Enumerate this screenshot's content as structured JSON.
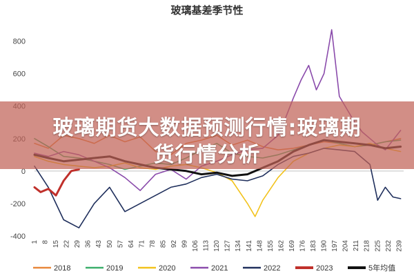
{
  "chart_data": {
    "type": "line",
    "title": "玻璃基差季节性",
    "xlabel": "",
    "ylabel": "",
    "ylim": [
      -400,
      900
    ],
    "yticks": [
      800,
      600,
      400,
      200,
      0,
      -200,
      -400
    ],
    "xrange": [
      1,
      242
    ],
    "xticks": [
      1,
      8,
      15,
      22,
      29,
      36,
      43,
      50,
      57,
      64,
      71,
      78,
      85,
      92,
      99,
      106,
      113,
      120,
      127,
      134,
      141,
      148,
      155,
      162,
      169,
      176,
      183,
      190,
      197,
      204,
      211,
      218,
      225,
      232,
      239
    ],
    "grid": false,
    "legend_position": "bottom",
    "series": [
      {
        "name": "2018",
        "color": "#e8873a",
        "x": [
          1,
          10,
          20,
          30,
          40,
          50,
          60,
          70,
          80,
          90,
          100,
          110,
          120,
          130,
          140,
          150,
          160,
          170,
          180,
          190,
          200,
          210,
          220,
          230,
          240
        ],
        "y": [
          170,
          140,
          220,
          200,
          170,
          220,
          180,
          210,
          120,
          100,
          170,
          190,
          220,
          160,
          190,
          150,
          130,
          140,
          160,
          180,
          170,
          150,
          160,
          180,
          200
        ]
      },
      {
        "name": "2019",
        "color": "#3aae6a",
        "x": [
          1,
          10,
          20,
          30,
          40,
          50,
          60,
          70,
          80,
          90,
          100,
          110,
          120,
          130,
          140,
          150,
          160,
          170,
          180,
          190,
          200,
          210,
          220,
          230,
          240
        ],
        "y": [
          200,
          150,
          90,
          80,
          60,
          40,
          10,
          30,
          50,
          40,
          80,
          130,
          170,
          110,
          90,
          80,
          100,
          130,
          160,
          190,
          170,
          150,
          160,
          180,
          190
        ]
      },
      {
        "name": "2020",
        "color": "#f2c21b",
        "x": [
          1,
          10,
          20,
          30,
          40,
          50,
          60,
          70,
          80,
          90,
          100,
          110,
          120,
          130,
          140,
          145,
          150,
          160,
          170,
          180,
          190,
          200,
          210,
          220,
          230,
          240
        ],
        "y": [
          90,
          60,
          40,
          30,
          20,
          30,
          50,
          20,
          10,
          30,
          40,
          20,
          -10,
          -60,
          -200,
          -280,
          -180,
          -40,
          60,
          110,
          140,
          160,
          150,
          170,
          140,
          120
        ]
      },
      {
        "name": "2021",
        "color": "#8a4bab",
        "x": [
          1,
          10,
          20,
          30,
          40,
          50,
          60,
          70,
          80,
          90,
          100,
          110,
          120,
          130,
          140,
          150,
          160,
          165,
          170,
          175,
          180,
          185,
          190,
          195,
          200,
          205,
          210,
          215,
          220,
          225,
          230,
          240
        ],
        "y": [
          110,
          90,
          120,
          100,
          60,
          20,
          -40,
          -120,
          -20,
          10,
          -50,
          30,
          60,
          100,
          130,
          140,
          220,
          330,
          450,
          560,
          650,
          500,
          600,
          870,
          460,
          380,
          300,
          240,
          200,
          160,
          130,
          250
        ]
      },
      {
        "name": "2022",
        "color": "#1f2f5c",
        "x": [
          1,
          10,
          20,
          30,
          40,
          50,
          60,
          70,
          80,
          90,
          100,
          110,
          120,
          130,
          140,
          150,
          160,
          170,
          180,
          190,
          200,
          210,
          220,
          225,
          230,
          235,
          240
        ],
        "y": [
          30,
          -100,
          -300,
          -350,
          -200,
          -100,
          -250,
          -200,
          -150,
          -100,
          -80,
          -40,
          -20,
          -50,
          -60,
          -30,
          40,
          90,
          110,
          140,
          130,
          120,
          40,
          -180,
          -100,
          -160,
          -170
        ]
      },
      {
        "name": "2023",
        "color": "#c0302b",
        "x": [
          1,
          5,
          10,
          15,
          20,
          25,
          30
        ],
        "y": [
          -100,
          -130,
          -110,
          -150,
          -60,
          0,
          10
        ]
      },
      {
        "name": "5年均值",
        "color": "#111111",
        "x": [
          1,
          10,
          20,
          30,
          40,
          50,
          60,
          70,
          80,
          90,
          100,
          110,
          120,
          130,
          140,
          150,
          160,
          170,
          180,
          190,
          200,
          210,
          220,
          230,
          240
        ],
        "y": [
          100,
          80,
          60,
          70,
          80,
          90,
          60,
          40,
          20,
          10,
          0,
          -20,
          -10,
          -30,
          -20,
          20,
          60,
          120,
          160,
          190,
          180,
          170,
          160,
          140,
          150
        ]
      }
    ]
  },
  "banner": {
    "line1": "玻璃期货大数据预测行情:玻璃期",
    "line2": "货行情分析"
  }
}
